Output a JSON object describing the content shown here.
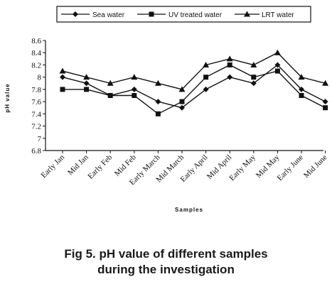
{
  "chart_data": {
    "type": "line",
    "xlabel": "Samples",
    "ylabel": "pH value",
    "ylim": [
      6.8,
      8.6
    ],
    "yticks": [
      "8.6",
      "8.4",
      "8.2",
      "8",
      "7.8",
      "7.6",
      "7.4",
      "7.2",
      "7",
      "6.8"
    ],
    "categories": [
      "Early Jan",
      "Mid Jan",
      "Early Feb",
      "Mid Feb",
      "Early March",
      "Mid March",
      "Early April",
      "Mid April",
      "Early May",
      "Mid May",
      "Early June",
      "Mid June"
    ],
    "series": [
      {
        "name": "Sea water",
        "marker": "diamond",
        "values": [
          8.0,
          7.9,
          7.7,
          7.8,
          7.6,
          7.5,
          7.8,
          8.0,
          7.9,
          8.2,
          7.8,
          7.6
        ]
      },
      {
        "name": "UV treated water",
        "marker": "square",
        "values": [
          7.8,
          7.8,
          7.7,
          7.7,
          7.4,
          7.6,
          8.0,
          8.2,
          8.0,
          8.1,
          7.7,
          7.5
        ]
      },
      {
        "name": "LRT water",
        "marker": "triangle",
        "values": [
          8.1,
          8.0,
          7.9,
          8.0,
          7.9,
          7.8,
          8.2,
          8.3,
          8.2,
          8.4,
          8.0,
          7.9
        ]
      }
    ],
    "grid": false,
    "legend": "top"
  },
  "legend": {
    "sea_label": "Sea water",
    "uv_label": "UV treated water",
    "lrt_label": "LRT water"
  },
  "caption": {
    "line1": "Fig 5. pH value of different samples",
    "line2": "during the investigation"
  }
}
